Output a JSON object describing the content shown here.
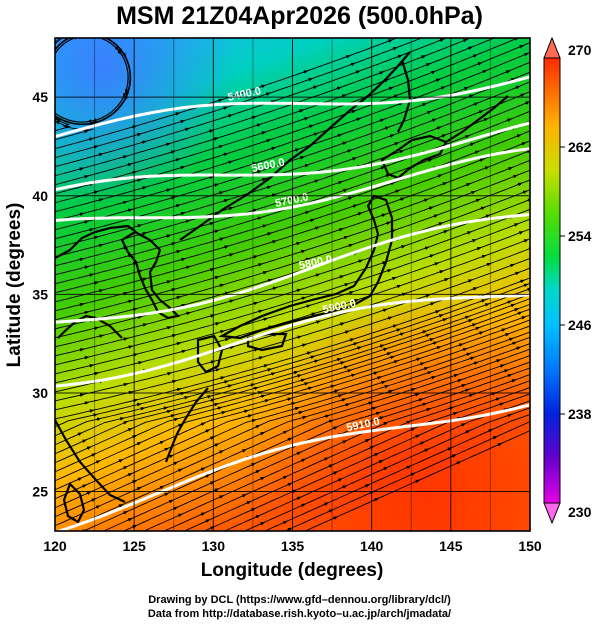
{
  "title": "MSM 21Z04Apr2026 (500.0hPa)",
  "x_axis": {
    "label": "Longitude (degrees)",
    "min": 120,
    "max": 150,
    "ticks": [
      "120",
      "125",
      "130",
      "135",
      "140",
      "145",
      "150"
    ]
  },
  "y_axis": {
    "label": "Latitude  (degrees)",
    "min": 23,
    "max": 48,
    "ticks": [
      "25",
      "30",
      "35",
      "40",
      "45"
    ]
  },
  "colorbar": {
    "min": 230,
    "max": 270,
    "tick_labels": [
      "230",
      "238",
      "246",
      "254",
      "262",
      "270"
    ],
    "colors": [
      "#e600e6",
      "#4400cc",
      "#0033ee",
      "#0099ff",
      "#00d8d8",
      "#00dd44",
      "#66dd00",
      "#cce000",
      "#ffcc00",
      "#ff6600",
      "#ff2200"
    ]
  },
  "contours": [
    {
      "label": "5400.0",
      "lat0": 43.0,
      "lat1": 46.2
    },
    {
      "label": "5600.0",
      "lat0": 39.8,
      "lat1": 43.3
    },
    {
      "label": "5700.0",
      "lat0": 38.2,
      "lat1": 41.8
    },
    {
      "label": "5800.0",
      "lat0": 33.5,
      "lat1": 38.8
    },
    {
      "label": "5900.0",
      "lat0": 30.8,
      "lat1": 35.3
    },
    {
      "label": "5910.0",
      "lat0": 23.5,
      "lat1": 30.0
    }
  ],
  "credit_line1": "Drawing by DCL (https://www.gfd–dennou.org/library/dcl/)",
  "credit_line2": "Data from http://database.rish.kyoto–u.ac.jp/arch/jmadata/"
}
